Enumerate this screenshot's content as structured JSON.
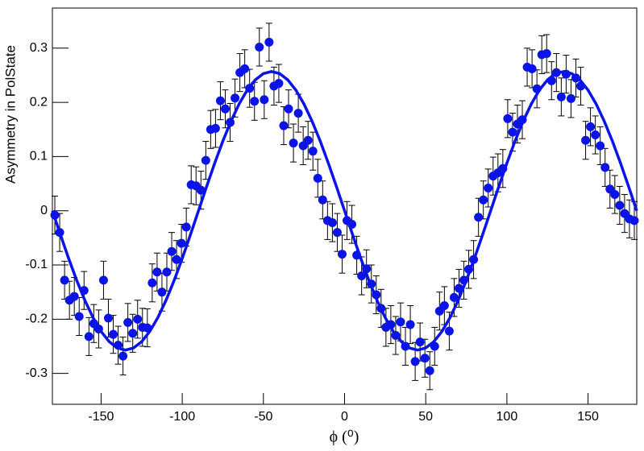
{
  "chart_data": {
    "type": "scatter",
    "x_label": "ϕ (⁰)",
    "y_label": "Asymmetry in PolState",
    "xlim": [
      -180,
      180
    ],
    "ylim": [
      -0.357,
      0.374
    ],
    "xticks": [
      -150,
      -100,
      -50,
      0,
      50,
      100,
      150
    ],
    "yticks": [
      -0.3,
      -0.2,
      -0.1,
      0,
      0.1,
      0.2,
      0.3
    ],
    "series": [
      {
        "color": "#0a14e8",
        "error": 0.035,
        "x": [
          -178.5,
          -175.5,
          -172.5,
          -169.5,
          -166.5,
          -163.5,
          -160.5,
          -157.5,
          -154.5,
          -151.5,
          -148.5,
          -145.5,
          -142.5,
          -139.5,
          -136.5,
          -133.5,
          -130.5,
          -127.5,
          -124.5,
          -121.5,
          -118.5,
          -115.5,
          -112.5,
          -109.5,
          -106.5,
          -103.5,
          -100.5,
          -97.5,
          -94.5,
          -91.5,
          -88.5,
          -85.5,
          -82.5,
          -79.5,
          -76.5,
          -73.5,
          -70.5,
          -67.5,
          -64.5,
          -61.5,
          -58.5,
          -55.5,
          -52.5,
          -49.5,
          -46.5,
          -43.5,
          -40.5,
          -37.5,
          -34.5,
          -31.5,
          -28.5,
          -25.5,
          -22.5,
          -19.5,
          -16.5,
          -13.5,
          -10.5,
          -7.5,
          -4.5,
          -1.5,
          1.5,
          4.5,
          7.5,
          10.5,
          13.5,
          16.5,
          19.5,
          22.5,
          25.5,
          28.5,
          31.5,
          34.5,
          37.5,
          40.5,
          43.5,
          46.5,
          49.5,
          52.5,
          55.5,
          58.5,
          61.5,
          64.5,
          67.5,
          70.5,
          73.5,
          76.5,
          79.5,
          82.5,
          85.5,
          88.5,
          91.5,
          94.5,
          97.5,
          100.5,
          103.5,
          106.5,
          109.5,
          112.5,
          115.5,
          118.5,
          121.5,
          124.5,
          127.5,
          130.5,
          133.5,
          136.5,
          139.5,
          142.5,
          145.5,
          148.5,
          151.5,
          154.5,
          157.5,
          160.5,
          163.5,
          166.5,
          169.5,
          172.5,
          175.5,
          178.5
        ],
        "values": [
          -0.008,
          -0.04,
          -0.128,
          -0.165,
          -0.158,
          -0.195,
          -0.147,
          -0.232,
          -0.208,
          -0.218,
          -0.128,
          -0.198,
          -0.228,
          -0.248,
          -0.268,
          -0.206,
          -0.226,
          -0.2,
          -0.215,
          -0.216,
          -0.133,
          -0.113,
          -0.15,
          -0.113,
          -0.075,
          -0.09,
          -0.06,
          -0.03,
          0.048,
          0.046,
          0.038,
          0.093,
          0.15,
          0.152,
          0.203,
          0.188,
          0.163,
          0.208,
          0.255,
          0.262,
          0.226,
          0.202,
          0.302,
          0.205,
          0.311,
          0.23,
          0.235,
          0.157,
          0.188,
          0.125,
          0.18,
          0.12,
          0.13,
          0.11,
          0.06,
          0.02,
          -0.018,
          -0.022,
          -0.04,
          -0.08,
          -0.018,
          -0.025,
          -0.082,
          -0.12,
          -0.107,
          -0.135,
          -0.155,
          -0.18,
          -0.215,
          -0.21,
          -0.23,
          -0.205,
          -0.25,
          -0.21,
          -0.278,
          -0.242,
          -0.272,
          -0.295,
          -0.25,
          -0.185,
          -0.175,
          -0.222,
          -0.16,
          -0.143,
          -0.128,
          -0.108,
          -0.09,
          -0.012,
          0.02,
          0.042,
          0.064,
          0.07,
          0.078,
          0.17,
          0.145,
          0.16,
          0.168,
          0.265,
          0.262,
          0.225,
          0.288,
          0.29,
          0.24,
          0.255,
          0.21,
          0.252,
          0.207,
          0.245,
          0.23,
          0.13,
          0.155,
          0.14,
          0.12,
          0.08,
          0.04,
          0.03,
          0.01,
          -0.005,
          -0.015,
          -0.018
        ]
      }
    ],
    "fit_line": {
      "color": "#0a14e8",
      "x": [
        -180,
        -175,
        -170,
        -165,
        -160,
        -155,
        -150,
        -145,
        -140,
        -135,
        -130,
        -125,
        -120,
        -115,
        -110,
        -105,
        -100,
        -95,
        -90,
        -85,
        -80,
        -75,
        -70,
        -65,
        -60,
        -55,
        -50,
        -45,
        -40,
        -35,
        -30,
        -25,
        -20,
        -15,
        -10,
        -5,
        0,
        5,
        10,
        15,
        20,
        25,
        30,
        35,
        40,
        45,
        50,
        55,
        60,
        65,
        70,
        75,
        80,
        85,
        90,
        95,
        100,
        105,
        110,
        115,
        120,
        125,
        130,
        135,
        140,
        145,
        150,
        155,
        160,
        165,
        170,
        175,
        180
      ],
      "values": [
        0,
        -0.0446,
        -0.0879,
        -0.1285,
        -0.1652,
        -0.1969,
        -0.2226,
        -0.2415,
        -0.2531,
        -0.257,
        -0.2531,
        -0.2415,
        -0.2226,
        -0.1969,
        -0.1652,
        -0.1285,
        -0.0879,
        -0.0446,
        0,
        0.0446,
        0.0879,
        0.1285,
        0.1652,
        0.1969,
        0.2226,
        0.2415,
        0.2531,
        0.257,
        0.2531,
        0.2415,
        0.2226,
        0.1969,
        0.1652,
        0.1285,
        0.0879,
        0.0446,
        0,
        -0.0446,
        -0.0879,
        -0.1285,
        -0.1652,
        -0.1969,
        -0.2226,
        -0.2415,
        -0.2531,
        -0.257,
        -0.2531,
        -0.2415,
        -0.2226,
        -0.1969,
        -0.1652,
        -0.1285,
        -0.0879,
        -0.0446,
        0,
        0.0446,
        0.0879,
        0.1285,
        0.1652,
        0.1969,
        0.2226,
        0.2415,
        0.2531,
        0.257,
        0.2531,
        0.2415,
        0.2226,
        0.1969,
        0.1652,
        0.1285,
        0.0879,
        0.0446,
        0
      ]
    }
  }
}
